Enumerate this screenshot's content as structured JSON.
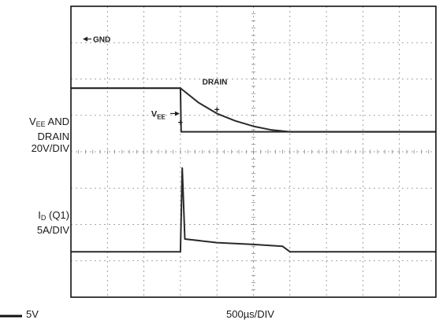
{
  "chart_data": {
    "type": "line",
    "grid": true,
    "divisions": {
      "x": 10,
      "y": 8
    },
    "x_scale": "500µs/DIV",
    "series": [
      {
        "name": "VEE",
        "scale": "20V/DIV",
        "points": [
          [
            0,
            5.75
          ],
          [
            3.0,
            5.75
          ],
          [
            3.02,
            4.55
          ],
          [
            10,
            4.55
          ]
        ]
      },
      {
        "name": "DRAIN",
        "scale": "20V/DIV",
        "points": [
          [
            0,
            5.75
          ],
          [
            3.0,
            5.75
          ],
          [
            3.5,
            5.35
          ],
          [
            4.0,
            5.05
          ],
          [
            4.5,
            4.85
          ],
          [
            5.0,
            4.7
          ],
          [
            5.5,
            4.6
          ],
          [
            6.0,
            4.55
          ],
          [
            10,
            4.55
          ]
        ]
      },
      {
        "name": "ID (Q1)",
        "scale": "5A/DIV",
        "points": [
          [
            0,
            1.25
          ],
          [
            3.0,
            1.25
          ],
          [
            3.05,
            3.55
          ],
          [
            3.12,
            1.6
          ],
          [
            4.0,
            1.5
          ],
          [
            5.0,
            1.45
          ],
          [
            5.8,
            1.4
          ],
          [
            6.0,
            1.25
          ],
          [
            10,
            1.25
          ]
        ]
      }
    ],
    "annotations": {
      "gnd": "GND",
      "drain_label": "DRAIN",
      "vee_label": "V",
      "vee_sub": "EE"
    }
  },
  "labels": {
    "ch1": {
      "line1_main": "V",
      "line1_sub": "EE",
      "line1_rest": " AND",
      "line2": "DRAIN",
      "line3": "20V/DIV"
    },
    "ch2": {
      "line1_main": "I",
      "line1_sub": "D",
      "line1_rest": " (Q1)",
      "line2": "5A/DIV"
    },
    "timebase": "500µs/DIV",
    "ground_ref": "5V"
  }
}
